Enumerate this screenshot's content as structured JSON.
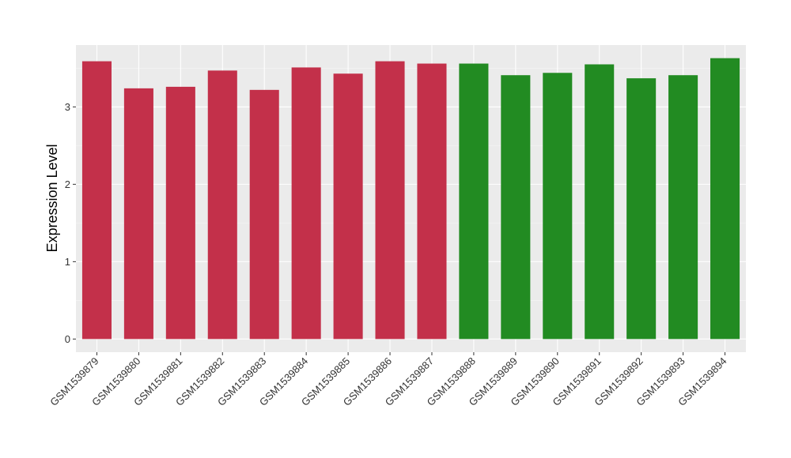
{
  "chart_data": {
    "type": "bar",
    "ylabel": "Expression Level",
    "xlabel": "",
    "ylim": [
      -0.17,
      3.8
    ],
    "yticks": [
      0,
      1,
      2,
      3
    ],
    "categories": [
      "GSM1539879",
      "GSM1539880",
      "GSM1539881",
      "GSM1539882",
      "GSM1539883",
      "GSM1539884",
      "GSM1539885",
      "GSM1539886",
      "GSM1539887",
      "GSM1539888",
      "GSM1539889",
      "GSM1539890",
      "GSM1539891",
      "GSM1539892",
      "GSM1539893",
      "GSM1539894"
    ],
    "values": [
      3.59,
      3.24,
      3.26,
      3.47,
      3.22,
      3.51,
      3.43,
      3.59,
      3.56,
      3.56,
      3.41,
      3.44,
      3.55,
      3.37,
      3.41,
      3.63
    ],
    "bar_colors": [
      "#c3304a",
      "#c3304a",
      "#c3304a",
      "#c3304a",
      "#c3304a",
      "#c3304a",
      "#c3304a",
      "#c3304a",
      "#c3304a",
      "#228b22",
      "#228b22",
      "#228b22",
      "#228b22",
      "#228b22",
      "#228b22",
      "#228b22"
    ],
    "grid": true,
    "panel_background": "#ebebeb"
  }
}
